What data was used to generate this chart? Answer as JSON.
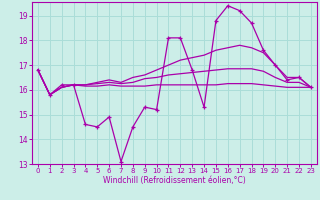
{
  "xlabel": "Windchill (Refroidissement éolien,°C)",
  "background_color": "#cceee8",
  "grid_color": "#aaddd8",
  "line_color": "#aa00aa",
  "x": [
    0,
    1,
    2,
    3,
    4,
    5,
    6,
    7,
    8,
    9,
    10,
    11,
    12,
    13,
    14,
    15,
    16,
    17,
    18,
    19,
    20,
    21,
    22,
    23
  ],
  "y_main": [
    16.8,
    15.8,
    16.2,
    16.2,
    14.6,
    14.5,
    14.9,
    13.1,
    14.5,
    15.3,
    15.2,
    18.1,
    18.1,
    16.8,
    15.3,
    18.8,
    19.4,
    19.2,
    18.7,
    17.6,
    17.0,
    16.4,
    16.5,
    16.1
  ],
  "y_line2": [
    16.8,
    15.8,
    16.1,
    16.2,
    16.2,
    16.3,
    16.4,
    16.3,
    16.5,
    16.6,
    16.8,
    17.0,
    17.2,
    17.3,
    17.4,
    17.6,
    17.7,
    17.8,
    17.7,
    17.5,
    17.0,
    16.5,
    16.5,
    16.1
  ],
  "y_line3": [
    16.8,
    15.8,
    16.1,
    16.2,
    16.2,
    16.25,
    16.3,
    16.25,
    16.3,
    16.45,
    16.5,
    16.6,
    16.65,
    16.7,
    16.75,
    16.8,
    16.85,
    16.85,
    16.85,
    16.75,
    16.5,
    16.3,
    16.3,
    16.1
  ],
  "y_line4": [
    16.8,
    15.8,
    16.1,
    16.2,
    16.15,
    16.15,
    16.2,
    16.15,
    16.15,
    16.15,
    16.2,
    16.2,
    16.2,
    16.2,
    16.2,
    16.2,
    16.25,
    16.25,
    16.25,
    16.2,
    16.15,
    16.1,
    16.1,
    16.1
  ],
  "ylim": [
    13.0,
    19.55
  ],
  "xlim": [
    -0.5,
    23.5
  ],
  "yticks": [
    13,
    14,
    15,
    16,
    17,
    18,
    19
  ],
  "xticks": [
    0,
    1,
    2,
    3,
    4,
    5,
    6,
    7,
    8,
    9,
    10,
    11,
    12,
    13,
    14,
    15,
    16,
    17,
    18,
    19,
    20,
    21,
    22,
    23
  ]
}
